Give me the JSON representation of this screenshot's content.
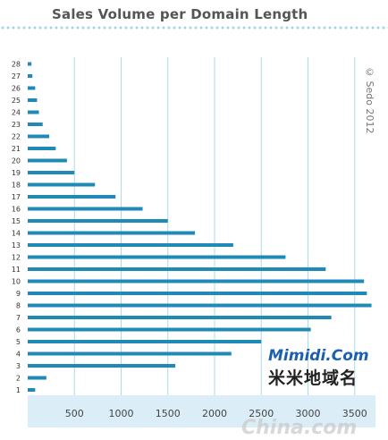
{
  "chart_data": {
    "type": "bar",
    "orientation": "horizontal",
    "title": "Sales Volume per Domain Length",
    "categories": [
      "1",
      "2",
      "3",
      "4",
      "5",
      "6",
      "7",
      "8",
      "9",
      "10",
      "11",
      "12",
      "13",
      "14",
      "15",
      "16",
      "17",
      "18",
      "19",
      "20",
      "21",
      "22",
      "23",
      "24",
      "25",
      "26",
      "27",
      "28"
    ],
    "values": [
      80,
      200,
      1580,
      2180,
      2500,
      3030,
      3250,
      3680,
      3630,
      3600,
      3190,
      2760,
      2200,
      1790,
      1500,
      1230,
      940,
      720,
      500,
      420,
      300,
      230,
      160,
      120,
      100,
      80,
      50,
      40
    ],
    "xticks": [
      500,
      1000,
      1500,
      2000,
      2500,
      3000,
      3500
    ],
    "xlim": [
      0,
      3700
    ],
    "grid": true,
    "bar_color": "#1f8ab5",
    "grid_color": "#a9dcec",
    "axis_band_color": "#dbeef7"
  },
  "copyright": "© Sedo 2012",
  "watermarks": {
    "site": "Mimidi.Com",
    "site_cn": "米米地域名",
    "china": "China.com"
  }
}
